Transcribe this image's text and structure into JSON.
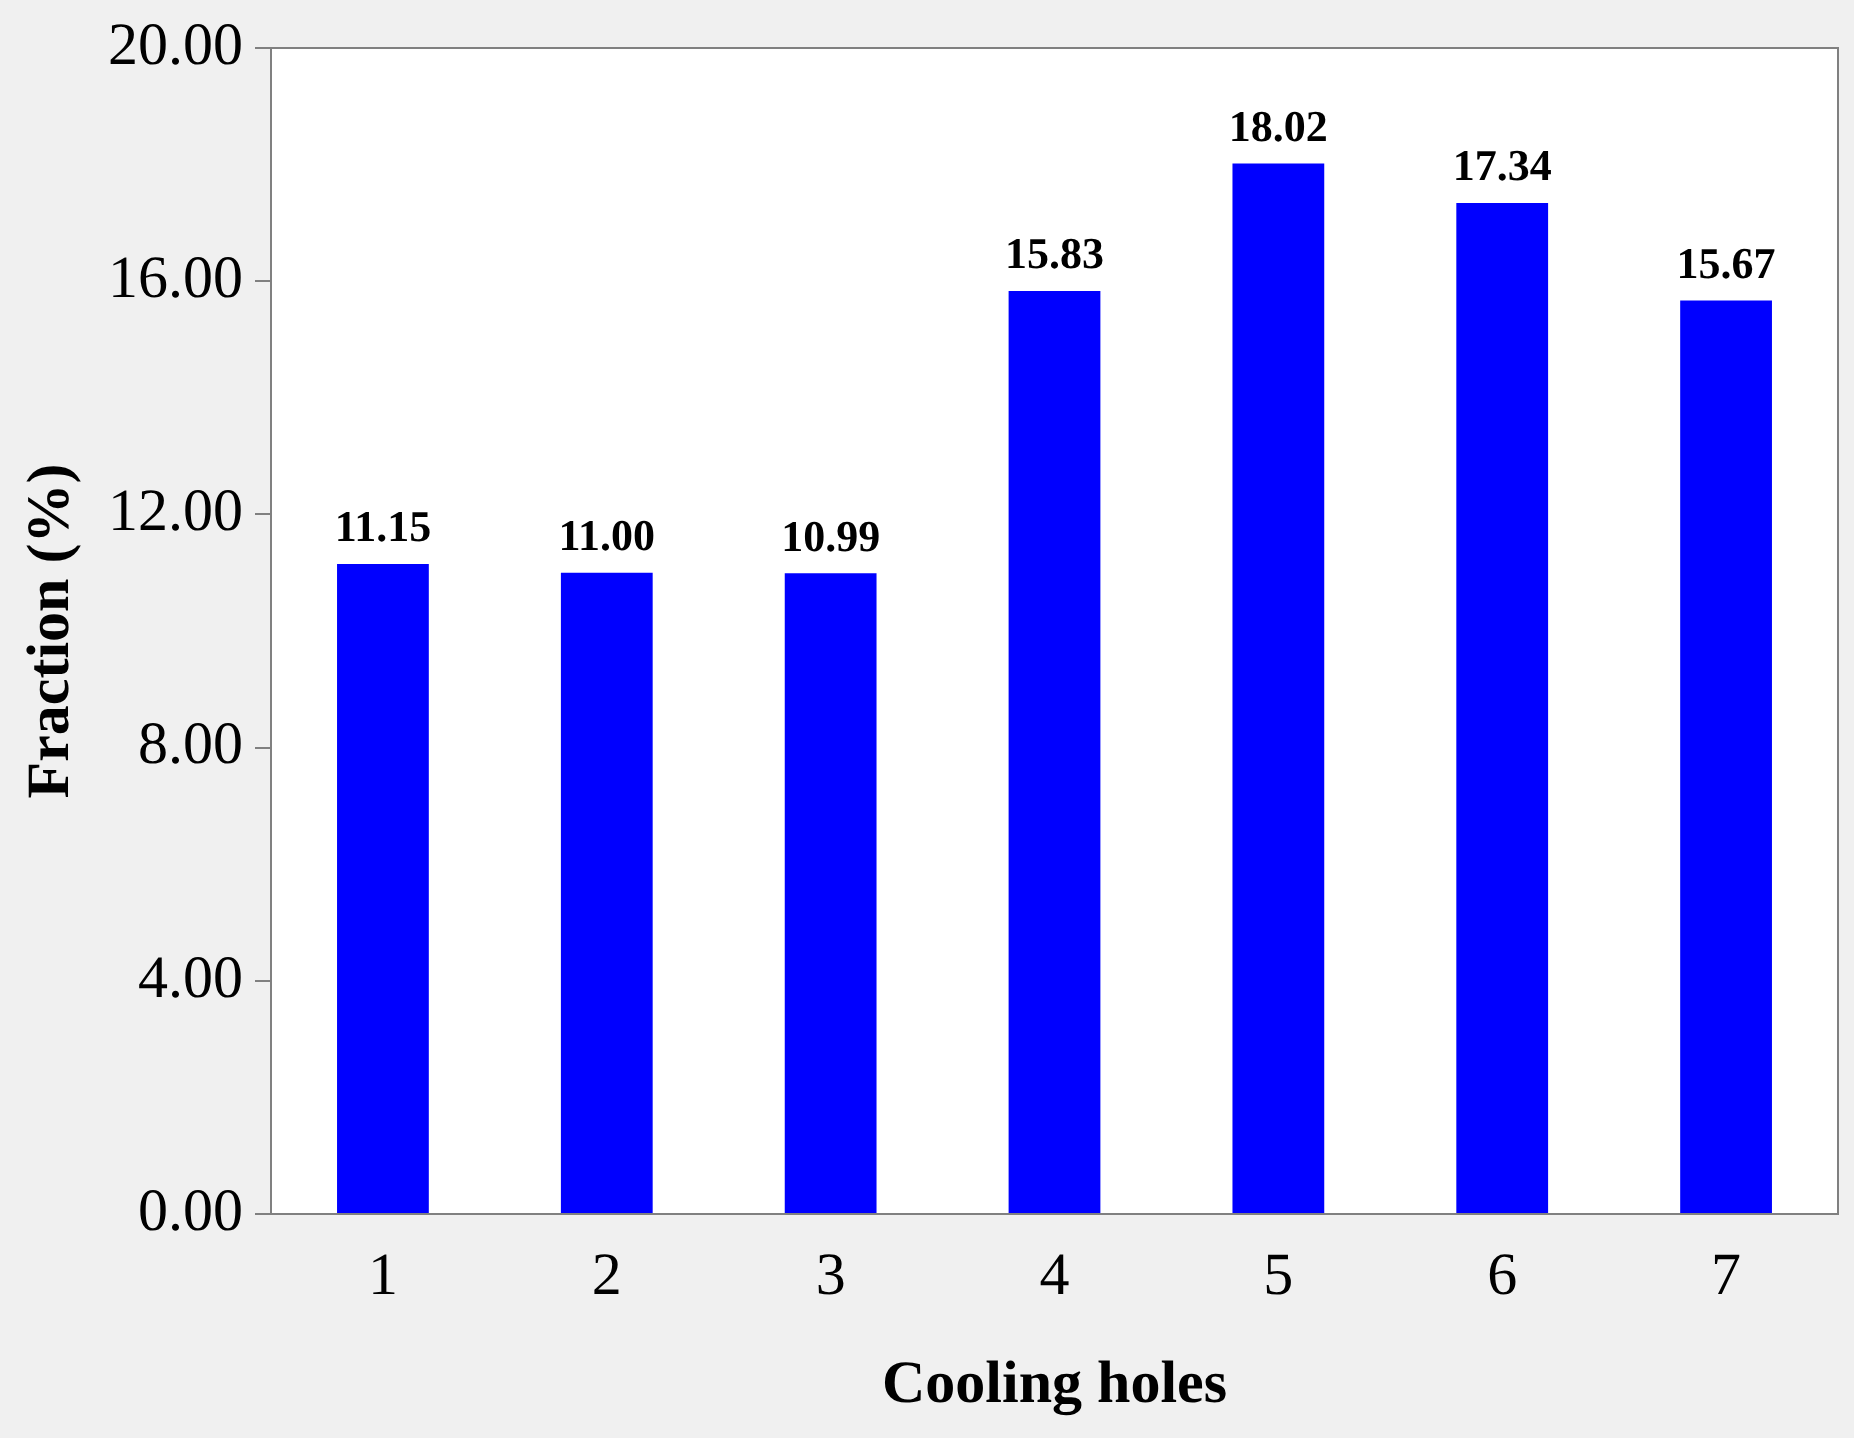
{
  "chart_data": {
    "type": "bar",
    "xlabel": "Cooling holes",
    "ylabel": "Fraction (%)",
    "categories": [
      "1",
      "2",
      "3",
      "4",
      "5",
      "6",
      "7"
    ],
    "values": [
      11.15,
      11.0,
      10.99,
      15.83,
      18.02,
      17.34,
      15.67
    ],
    "color": "#0000ff",
    "ylim": [
      0,
      20
    ],
    "yticks": [
      {
        "value": 0,
        "label": "0.00"
      },
      {
        "value": 4,
        "label": "4.00"
      },
      {
        "value": 8,
        "label": "8.00"
      },
      {
        "value": 12,
        "label": "12.00"
      },
      {
        "value": 16,
        "label": "16.00"
      },
      {
        "value": 20,
        "label": "20.00"
      }
    ],
    "value_labels": [
      "11.15",
      "11.00",
      "10.99",
      "15.83",
      "18.02",
      "17.34",
      "15.67"
    ],
    "grid": false,
    "legend": false
  }
}
